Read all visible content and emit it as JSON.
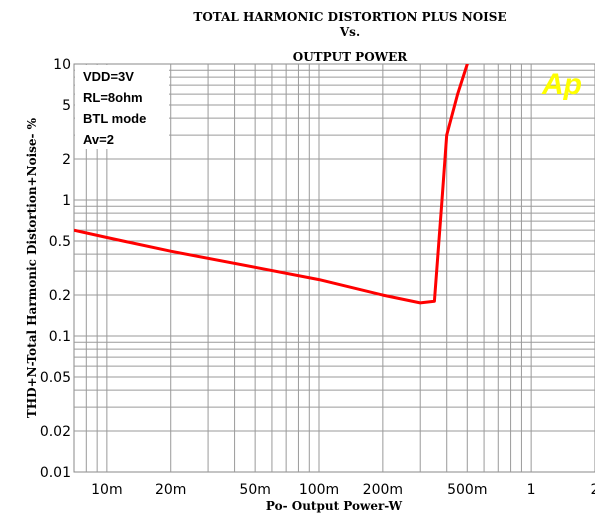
{
  "chart_data": {
    "type": "line",
    "title": [
      "TOTAL HARMONIC DISTORTION PLUS NOISE",
      "Vs.",
      "OUTPUT POWER"
    ],
    "xlabel": "Po- Output Power-W",
    "ylabel": "THD+N-Total Harmonic Distortion+Noise- %",
    "x_scale": "log",
    "y_scale": "log",
    "xlim": [
      0.007,
      2
    ],
    "ylim": [
      0.01,
      10
    ],
    "x_ticks": [
      {
        "value": 0.01,
        "label": "10m"
      },
      {
        "value": 0.02,
        "label": "20m"
      },
      {
        "value": 0.05,
        "label": "50m"
      },
      {
        "value": 0.1,
        "label": "100m"
      },
      {
        "value": 0.2,
        "label": "200m"
      },
      {
        "value": 0.5,
        "label": "500m"
      },
      {
        "value": 1,
        "label": "1"
      },
      {
        "value": 2,
        "label": "2"
      }
    ],
    "y_ticks": [
      {
        "value": 0.01,
        "label": "0.01"
      },
      {
        "value": 0.02,
        "label": "0.02"
      },
      {
        "value": 0.05,
        "label": "0.05"
      },
      {
        "value": 0.1,
        "label": "0.1"
      },
      {
        "value": 0.2,
        "label": "0.2"
      },
      {
        "value": 0.5,
        "label": "0.5"
      },
      {
        "value": 1,
        "label": "1"
      },
      {
        "value": 2,
        "label": "2"
      },
      {
        "value": 5,
        "label": "5"
      },
      {
        "value": 10,
        "label": "10"
      }
    ],
    "grid": true,
    "annotations": [
      "VDD=3V",
      "RL=8ohm",
      "BTL mode",
      "Av=2"
    ],
    "logo": "Ap",
    "series": [
      {
        "color": "#ff0000",
        "x": [
          0.007,
          0.01,
          0.02,
          0.05,
          0.1,
          0.2,
          0.3,
          0.35,
          0.38,
          0.4,
          0.45,
          0.5,
          0.52
        ],
        "y": [
          0.6,
          0.53,
          0.42,
          0.32,
          0.26,
          0.2,
          0.175,
          0.18,
          1.0,
          3.0,
          6.0,
          10.0,
          11.0
        ]
      }
    ]
  }
}
